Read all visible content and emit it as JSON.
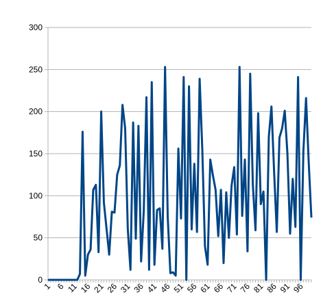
{
  "chart_data": {
    "type": "line",
    "title": "",
    "xlabel": "",
    "ylabel": "",
    "ylim": [
      0,
      300
    ],
    "yticks": [
      0,
      50,
      100,
      150,
      200,
      250,
      300
    ],
    "xticks": [
      1,
      6,
      11,
      16,
      21,
      26,
      31,
      36,
      41,
      46,
      51,
      56,
      61,
      66,
      71,
      76,
      81,
      86,
      91,
      96
    ],
    "xlim": [
      1,
      100
    ],
    "grid": "horizontal",
    "legend": "none",
    "line_color": "#004586",
    "x": [
      1,
      2,
      3,
      4,
      5,
      6,
      7,
      8,
      9,
      10,
      11,
      12,
      13,
      14,
      15,
      16,
      17,
      18,
      19,
      20,
      21,
      22,
      23,
      24,
      25,
      26,
      27,
      28,
      29,
      30,
      31,
      32,
      33,
      34,
      35,
      36,
      37,
      38,
      39,
      40,
      41,
      42,
      43,
      44,
      45,
      46,
      47,
      48,
      49,
      50,
      51,
      52,
      53,
      54,
      55,
      56,
      57,
      58,
      59,
      60,
      61,
      62,
      63,
      64,
      65,
      66,
      67,
      68,
      69,
      70,
      71,
      72,
      73,
      74,
      75,
      76,
      77,
      78,
      79,
      80,
      81,
      82,
      83,
      84,
      85,
      86,
      87,
      88,
      89,
      90,
      91,
      92,
      93,
      94,
      95,
      96,
      97,
      98,
      99,
      100
    ],
    "series": [
      {
        "values": [
          0,
          0,
          0,
          0,
          0,
          0,
          0,
          0,
          0,
          0,
          0,
          0,
          7,
          176,
          5,
          30,
          36,
          107,
          113,
          33,
          200,
          92,
          61,
          30,
          81,
          80,
          125,
          136,
          208,
          180,
          60,
          12,
          187,
          49,
          183,
          22,
          82,
          217,
          12,
          235,
          18,
          83,
          85,
          37,
          253,
          75,
          8,
          9,
          5,
          156,
          73,
          241,
          0,
          230,
          60,
          138,
          57,
          239,
          155,
          40,
          18,
          143,
          124,
          107,
          52,
          107,
          20,
          104,
          50,
          112,
          134,
          54,
          253,
          76,
          143,
          34,
          245,
          113,
          59,
          198,
          90,
          105,
          0,
          170,
          206,
          128,
          57,
          169,
          180,
          201,
          150,
          55,
          120,
          63,
          241,
          0,
          153,
          216,
          140,
          74
        ]
      }
    ]
  }
}
